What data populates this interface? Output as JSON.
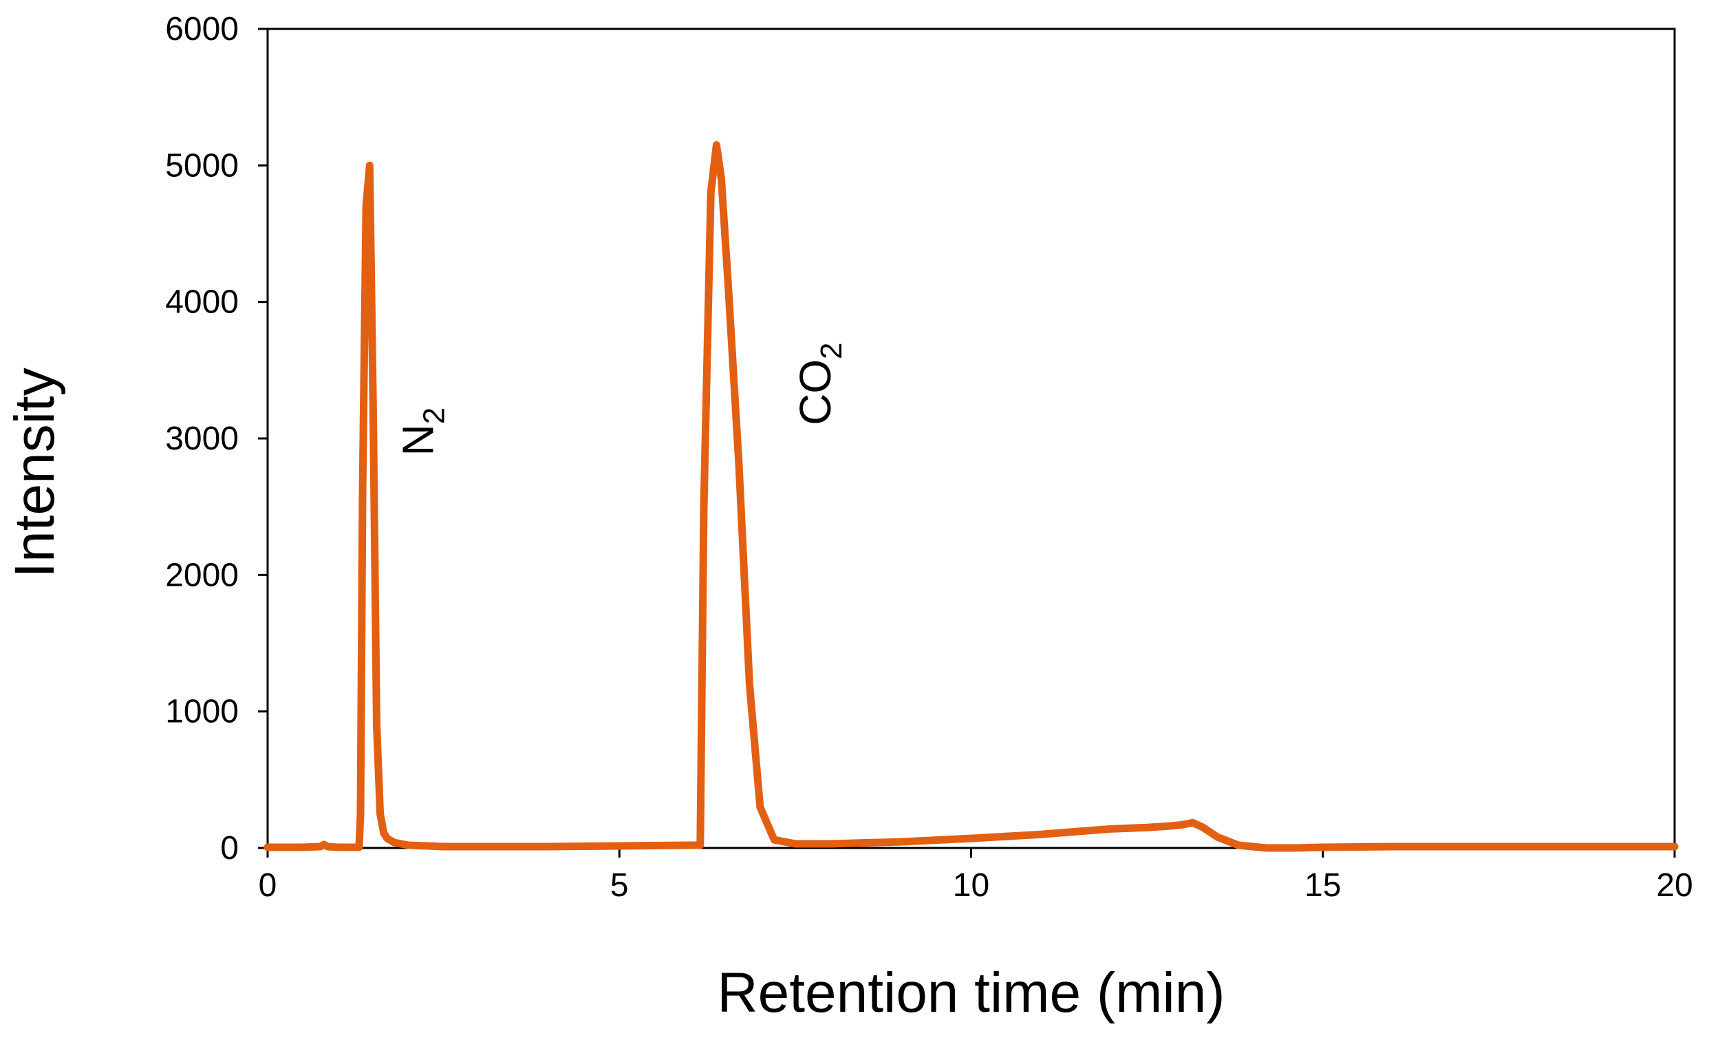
{
  "chart_data": {
    "type": "line",
    "title": "",
    "xlabel": "Retention time (min)",
    "ylabel": "Intensity",
    "xlim": [
      0,
      20
    ],
    "ylim": [
      0,
      6000
    ],
    "xticks": [
      0,
      5,
      10,
      15,
      20
    ],
    "yticks": [
      0,
      1000,
      2000,
      3000,
      4000,
      5000,
      6000
    ],
    "grid": false,
    "legend": "none",
    "line_color": "#E35F12",
    "series": [
      {
        "x": [
          0,
          0.5,
          0.75,
          0.8,
          0.85,
          1.0,
          1.3,
          1.32,
          1.35,
          1.4,
          1.45,
          1.5,
          1.55,
          1.6,
          1.65,
          1.7,
          1.8,
          2.0,
          2.5,
          3.0,
          4.0,
          5.0,
          6.0,
          6.15,
          6.2,
          6.3,
          6.38,
          6.45,
          6.55,
          6.7,
          6.85,
          7.0,
          7.2,
          7.5,
          8.0,
          9.0,
          10.0,
          11.0,
          12.0,
          12.5,
          12.8,
          13.0,
          13.15,
          13.3,
          13.5,
          13.8,
          14.2,
          14.6,
          15.0,
          16.0,
          17.0,
          18.0,
          19.0,
          20.0
        ],
        "y": [
          5,
          5,
          10,
          25,
          10,
          5,
          5,
          250,
          2600,
          4700,
          5000,
          3200,
          900,
          250,
          110,
          70,
          40,
          20,
          10,
          10,
          10,
          15,
          20,
          20,
          2500,
          4800,
          5150,
          4900,
          4100,
          2800,
          1200,
          300,
          60,
          30,
          30,
          45,
          70,
          100,
          140,
          150,
          160,
          170,
          185,
          150,
          80,
          20,
          0,
          0,
          5,
          10,
          10,
          10,
          10,
          10
        ]
      }
    ],
    "annotations": [
      {
        "text": "N",
        "subscript": "2",
        "x": 2.35,
        "y": 3050
      },
      {
        "text": "CO",
        "subscript": "2",
        "x": 8.0,
        "y": 3400
      }
    ]
  }
}
